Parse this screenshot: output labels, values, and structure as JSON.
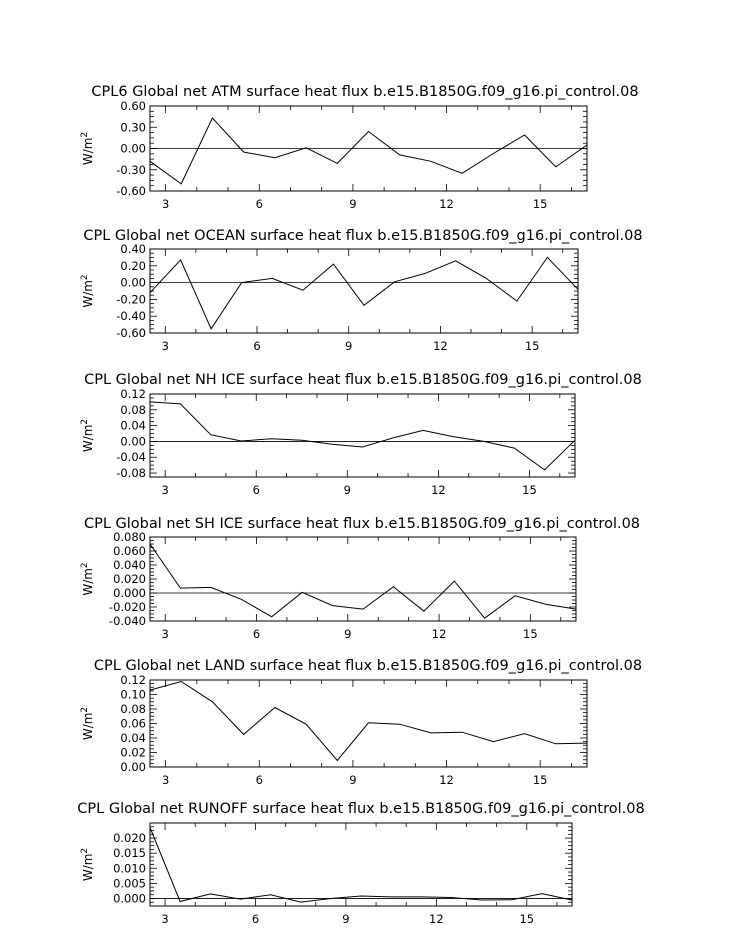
{
  "chart_data": [
    {
      "type": "line",
      "title": "CPL6 Global net ATM surface heat flux b.e15.B1850G.f09_g16.pi_control.08",
      "ylabel": "W/m",
      "ylabel_sup": "2",
      "xlim": [
        2.5,
        16.5
      ],
      "ylim": [
        -0.6,
        0.6
      ],
      "xticks": [
        "3",
        "6",
        "9",
        "12",
        "15"
      ],
      "yticks": [
        "0.60",
        "0.30",
        "0.00",
        "-0.30",
        "-0.60"
      ],
      "x": [
        2.5,
        3.5,
        4.5,
        5.5,
        6.5,
        7.5,
        8.5,
        9.5,
        10.5,
        11.5,
        12.5,
        13.5,
        14.5,
        15.5,
        16.5
      ],
      "values": [
        -0.18,
        -0.5,
        0.43,
        -0.05,
        -0.13,
        0.01,
        -0.21,
        0.24,
        -0.09,
        -0.18,
        -0.35,
        -0.07,
        0.19,
        -0.26,
        0.05
      ]
    },
    {
      "type": "line",
      "title": "CPL Global net OCEAN surface heat flux b.e15.B1850G.f09_g16.pi_control.08",
      "ylabel": "W/m",
      "ylabel_sup": "2",
      "xlim": [
        2.5,
        16.5
      ],
      "ylim": [
        -0.6,
        0.4
      ],
      "xticks": [
        "3",
        "6",
        "9",
        "12",
        "15"
      ],
      "yticks": [
        "0.40",
        "0.20",
        "0.00",
        "-0.20",
        "-0.40",
        "-0.60"
      ],
      "x": [
        2.5,
        3.5,
        4.5,
        5.5,
        6.5,
        7.5,
        8.5,
        9.5,
        10.5,
        11.5,
        12.5,
        13.5,
        14.5,
        15.5,
        16.5
      ],
      "values": [
        -0.12,
        0.27,
        -0.55,
        0.0,
        0.05,
        -0.09,
        0.22,
        -0.27,
        0.01,
        0.11,
        0.26,
        0.05,
        -0.22,
        0.3,
        -0.08
      ]
    },
    {
      "type": "line",
      "title": "CPL Global net NH ICE surface heat flux b.e15.B1850G.f09_g16.pi_control.08",
      "ylabel": "W/m",
      "ylabel_sup": "2",
      "xlim": [
        2.5,
        16.5
      ],
      "ylim": [
        -0.09,
        0.12
      ],
      "xticks": [
        "3",
        "6",
        "9",
        "12",
        "15"
      ],
      "yticks": [
        "0.12",
        "0.08",
        "0.04",
        "0.00",
        "-0.04",
        "-0.08"
      ],
      "x": [
        2.5,
        3.5,
        4.5,
        5.5,
        6.5,
        7.5,
        8.5,
        9.5,
        10.5,
        11.5,
        12.5,
        13.5,
        14.5,
        15.5,
        16.5
      ],
      "values": [
        0.1,
        0.095,
        0.017,
        0.001,
        0.007,
        0.003,
        -0.007,
        -0.014,
        0.009,
        0.028,
        0.012,
        0.0,
        -0.017,
        -0.072,
        0.003
      ]
    },
    {
      "type": "line",
      "title": "CPL Global net SH ICE surface heat flux b.e15.B1850G.f09_g16.pi_control.08",
      "ylabel": "W/m",
      "ylabel_sup": "2",
      "xlim": [
        2.5,
        16.5
      ],
      "ylim": [
        -0.04,
        0.08
      ],
      "xticks": [
        "3",
        "6",
        "9",
        "12",
        "15"
      ],
      "yticks": [
        "0.080",
        "0.060",
        "0.040",
        "0.020",
        "0.000",
        "-0.020",
        "-0.040"
      ],
      "x": [
        2.5,
        3.5,
        4.5,
        5.5,
        6.5,
        7.5,
        8.5,
        9.5,
        10.5,
        11.5,
        12.5,
        13.5,
        14.5,
        15.5,
        16.5
      ],
      "values": [
        0.07,
        0.007,
        0.008,
        -0.009,
        -0.034,
        0.001,
        -0.018,
        -0.023,
        0.009,
        -0.026,
        0.017,
        -0.036,
        -0.004,
        -0.016,
        -0.023
      ]
    },
    {
      "type": "line",
      "title": "CPL Global net LAND surface heat flux b.e15.B1850G.f09_g16.pi_control.08",
      "ylabel": "W/m",
      "ylabel_sup": "2",
      "xlim": [
        2.5,
        16.5
      ],
      "ylim": [
        0.0,
        0.12
      ],
      "xticks": [
        "3",
        "6",
        "9",
        "12",
        "15"
      ],
      "yticks": [
        "0.12",
        "0.10",
        "0.08",
        "0.06",
        "0.04",
        "0.02",
        "0.00"
      ],
      "x": [
        2.5,
        3.5,
        4.5,
        5.5,
        6.5,
        7.5,
        8.5,
        9.5,
        10.5,
        11.5,
        12.5,
        13.5,
        14.5,
        15.5,
        16.5
      ],
      "values": [
        0.106,
        0.118,
        0.09,
        0.045,
        0.082,
        0.059,
        0.009,
        0.061,
        0.059,
        0.047,
        0.048,
        0.035,
        0.046,
        0.032,
        0.033
      ]
    },
    {
      "type": "line",
      "title": "CPL Global net RUNOFF surface heat flux b.e15.B1850G.f09_g16.pi_control.08",
      "ylabel": "W/m",
      "ylabel_sup": "2",
      "xlim": [
        2.5,
        16.5
      ],
      "ylim": [
        -0.0025,
        0.025
      ],
      "xticks": [
        "3",
        "6",
        "9",
        "12",
        "15"
      ],
      "yticks": [
        "0.020",
        "0.015",
        "0.010",
        "0.005",
        "0.000"
      ],
      "x": [
        2.5,
        3.5,
        4.5,
        5.5,
        6.5,
        7.5,
        8.5,
        9.5,
        10.5,
        11.5,
        12.5,
        13.5,
        14.5,
        15.5,
        16.5
      ],
      "values": [
        0.0235,
        -0.001,
        0.0015,
        -0.0002,
        0.0012,
        -0.0012,
        0.0,
        0.0008,
        0.0005,
        0.0005,
        0.0003,
        -0.0005,
        -0.0004,
        0.0016,
        -0.0005
      ]
    }
  ]
}
